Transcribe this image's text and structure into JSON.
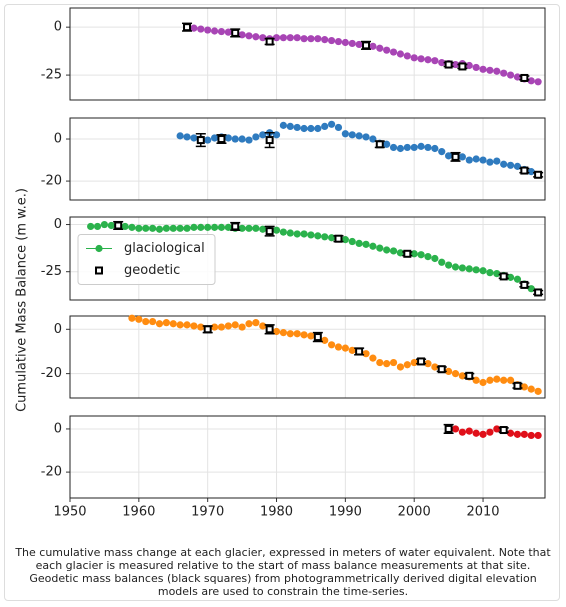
{
  "ylabel": "Cumulative Mass Balance (m w.e.)",
  "caption": "The cumulative mass change at each glacier, expressed in meters of water equivalent. Note that each glacier is measured relative to the start of mass balance measurements at that site. Geodetic mass balances (black squares) from photogrammetrically derived digital elevation models are used to constrain the time-series.",
  "chart_data": [
    {
      "type": "scatter",
      "xlim": [
        1950,
        2019
      ],
      "xticks": [
        1950,
        1960,
        1970,
        1980,
        1990,
        2000,
        2010
      ],
      "ylim": [
        -38,
        10
      ],
      "yticks": [
        0,
        -25
      ],
      "grid": true,
      "series": [
        {
          "color": "#a845b5",
          "x": [
            1967,
            1968,
            1969,
            1970,
            1971,
            1972,
            1973,
            1974,
            1975,
            1976,
            1977,
            1978,
            1979,
            1980,
            1981,
            1982,
            1983,
            1984,
            1985,
            1986,
            1987,
            1988,
            1989,
            1990,
            1991,
            1992,
            1993,
            1994,
            1995,
            1996,
            1997,
            1998,
            1999,
            2000,
            2001,
            2002,
            2003,
            2004,
            2005,
            2006,
            2007,
            2008,
            2009,
            2010,
            2011,
            2012,
            2013,
            2014,
            2015,
            2016,
            2017,
            2018
          ],
          "values": [
            0,
            -0.5,
            -1,
            -1.5,
            -2,
            -2.3,
            -2.6,
            -3,
            -4,
            -4.5,
            -5,
            -5.5,
            -6,
            -5.5,
            -5.5,
            -5.5,
            -5.5,
            -6,
            -6,
            -6,
            -6.5,
            -7,
            -7.5,
            -8,
            -8.5,
            -9,
            -9.5,
            -10,
            -11,
            -12,
            -13,
            -14,
            -15,
            -16,
            -16.5,
            -17,
            -17.5,
            -18.5,
            -19,
            -19.5,
            -19,
            -20,
            -21,
            -22,
            -22.5,
            -23,
            -24,
            -25,
            -26,
            -27,
            -28,
            -28.5
          ]
        },
        {
          "color": "#000000",
          "marker": "square",
          "x": [
            1967,
            1974,
            1979,
            1993,
            2005,
            2007,
            2016
          ],
          "values": [
            0,
            -3,
            -7.5,
            -9.5,
            -19.5,
            -20.5,
            -26.5
          ],
          "errors": [
            2,
            2,
            1.5,
            2,
            1,
            1,
            1
          ]
        }
      ]
    },
    {
      "type": "scatter",
      "xlim": [
        1950,
        2019
      ],
      "xticks": [
        1950,
        1960,
        1970,
        1980,
        1990,
        2000,
        2010
      ],
      "ylim": [
        -29,
        10
      ],
      "yticks": [
        0,
        -20
      ],
      "grid": true,
      "series": [
        {
          "color": "#2f7bbf",
          "x": [
            1966,
            1967,
            1968,
            1969,
            1970,
            1971,
            1972,
            1973,
            1974,
            1975,
            1976,
            1977,
            1978,
            1979,
            1980,
            1981,
            1982,
            1983,
            1984,
            1985,
            1986,
            1987,
            1988,
            1989,
            1990,
            1991,
            1992,
            1993,
            1994,
            1995,
            1996,
            1997,
            1998,
            1999,
            2000,
            2001,
            2002,
            2003,
            2004,
            2005,
            2006,
            2007,
            2008,
            2009,
            2010,
            2011,
            2012,
            2013,
            2014,
            2015,
            2016,
            2017,
            2018
          ],
          "values": [
            1.5,
            1,
            0.5,
            0,
            -0.5,
            0.5,
            1,
            0.5,
            0,
            0,
            -0.5,
            1,
            2,
            3,
            2,
            6.5,
            6,
            5.5,
            5,
            5,
            5,
            6,
            7,
            5.5,
            2.5,
            2,
            1.5,
            1,
            0,
            -2,
            -2.5,
            -4,
            -4.5,
            -4,
            -4,
            -3.5,
            -4,
            -4.5,
            -6,
            -8,
            -8.5,
            -8.5,
            -10,
            -9.5,
            -10,
            -11,
            -10.5,
            -12,
            -12.5,
            -13,
            -14.5,
            -15.5,
            -17
          ]
        },
        {
          "color": "#000000",
          "marker": "square",
          "x": [
            1969,
            1972,
            1979,
            1995,
            2006,
            2016,
            2018
          ],
          "values": [
            -0.5,
            0,
            -0.5,
            -2.5,
            -8.5,
            -15,
            -17
          ],
          "errors": [
            3,
            2,
            3.5,
            1.5,
            2,
            1,
            1
          ]
        }
      ]
    },
    {
      "type": "scatter",
      "xlim": [
        1950,
        2019
      ],
      "xticks": [
        1950,
        1960,
        1970,
        1980,
        1990,
        2000,
        2010
      ],
      "ylim": [
        -40,
        4
      ],
      "yticks": [
        0,
        -25
      ],
      "grid": true,
      "legend": "center left",
      "series": [
        {
          "name": "glaciological",
          "color": "#2bb24c",
          "x": [
            1953,
            1954,
            1955,
            1956,
            1957,
            1958,
            1959,
            1960,
            1961,
            1962,
            1963,
            1964,
            1965,
            1966,
            1967,
            1968,
            1969,
            1970,
            1971,
            1972,
            1973,
            1974,
            1975,
            1976,
            1977,
            1978,
            1979,
            1980,
            1981,
            1982,
            1983,
            1984,
            1985,
            1986,
            1987,
            1988,
            1989,
            1990,
            1991,
            1992,
            1993,
            1994,
            1995,
            1996,
            1997,
            1998,
            1999,
            2000,
            2001,
            2002,
            2003,
            2004,
            2005,
            2006,
            2007,
            2008,
            2009,
            2010,
            2011,
            2012,
            2013,
            2014,
            2015,
            2016,
            2017,
            2018
          ],
          "values": [
            -1,
            -1,
            0,
            -0.5,
            -0.5,
            -1,
            -1.5,
            -2,
            -2,
            -2,
            -2.5,
            -2,
            -2,
            -2,
            -2,
            -1.5,
            -1.5,
            -1.5,
            -1.5,
            -1.5,
            -1.5,
            -2,
            -2,
            -2,
            -2,
            -2.5,
            -3,
            -3,
            -4,
            -4.5,
            -5,
            -5,
            -5.5,
            -6,
            -6.5,
            -7,
            -7.5,
            -8,
            -9,
            -10,
            -10.5,
            -11.5,
            -12.5,
            -13.5,
            -14,
            -15,
            -15.5,
            -15.5,
            -16,
            -17,
            -18,
            -20,
            -21.5,
            -22.5,
            -23,
            -23.5,
            -24,
            -24.5,
            -25.5,
            -26,
            -27,
            -28,
            -29,
            -31.5,
            -34,
            -36
          ]
        },
        {
          "name": "geodetic",
          "color": "#000000",
          "marker": "square",
          "x": [
            1957,
            1974,
            1979,
            1989,
            1999,
            2013,
            2016,
            2018
          ],
          "values": [
            -0.5,
            -1,
            -3.5,
            -7.5,
            -15.5,
            -27.5,
            -32,
            -36
          ],
          "errors": [
            2,
            2,
            2.5,
            1.5,
            1,
            1,
            1,
            1
          ]
        }
      ]
    },
    {
      "type": "scatter",
      "xlim": [
        1950,
        2019
      ],
      "xticks": [
        1950,
        1960,
        1970,
        1980,
        1990,
        2000,
        2010
      ],
      "ylim": [
        -31,
        6
      ],
      "yticks": [
        0,
        -20
      ],
      "grid": true,
      "series": [
        {
          "color": "#ff8c10",
          "x": [
            1959,
            1960,
            1961,
            1962,
            1963,
            1964,
            1965,
            1966,
            1967,
            1968,
            1969,
            1970,
            1971,
            1972,
            1973,
            1974,
            1975,
            1976,
            1977,
            1978,
            1979,
            1980,
            1981,
            1982,
            1983,
            1984,
            1985,
            1986,
            1987,
            1988,
            1989,
            1990,
            1991,
            1992,
            1993,
            1994,
            1995,
            1996,
            1997,
            1998,
            1999,
            2000,
            2001,
            2002,
            2003,
            2004,
            2005,
            2006,
            2007,
            2008,
            2009,
            2010,
            2011,
            2012,
            2013,
            2014,
            2015,
            2016,
            2017,
            2018
          ],
          "values": [
            5,
            4.5,
            3.5,
            3.5,
            2.5,
            3,
            2.5,
            2,
            2,
            1.5,
            1,
            0,
            1,
            1,
            1.5,
            2,
            1,
            2.5,
            3,
            1.5,
            0,
            -1,
            -1.5,
            -2,
            -2,
            -2.5,
            -3,
            -3.5,
            -5,
            -7,
            -8,
            -8.5,
            -9.5,
            -10,
            -11,
            -13,
            -15,
            -15.5,
            -15,
            -17,
            -16,
            -15,
            -14.5,
            -15.5,
            -17,
            -18,
            -19,
            -20,
            -21,
            -21.5,
            -23,
            -24,
            -23,
            -22.5,
            -23,
            -23,
            -25,
            -26,
            -27,
            -28
          ]
        },
        {
          "color": "#000000",
          "marker": "square",
          "x": [
            1970,
            1979,
            1986,
            1992,
            2001,
            2004,
            2008,
            2015
          ],
          "values": [
            0,
            0,
            -3.5,
            -10,
            -14.5,
            -18,
            -21,
            -25.5
          ],
          "errors": [
            1.5,
            2,
            2,
            1.5,
            1,
            1,
            1,
            1
          ]
        }
      ]
    },
    {
      "type": "scatter",
      "xlim": [
        1950,
        2019
      ],
      "xticks": [
        1950,
        1960,
        1970,
        1980,
        1990,
        2000,
        2010
      ],
      "ylim": [
        -32,
        6
      ],
      "yticks": [
        0,
        -20
      ],
      "grid": true,
      "series": [
        {
          "color": "#e0101a",
          "x": [
            2006,
            2007,
            2008,
            2009,
            2010,
            2011,
            2012,
            2013,
            2014,
            2015,
            2016,
            2017,
            2018
          ],
          "values": [
            0,
            -1.5,
            -1,
            -2,
            -2.5,
            -1.5,
            0,
            -0.5,
            -2,
            -2.5,
            -2.5,
            -3,
            -3
          ]
        },
        {
          "color": "#000000",
          "marker": "square",
          "x": [
            2005,
            2013
          ],
          "values": [
            0,
            -0.5
          ],
          "errors": [
            2,
            1
          ]
        }
      ]
    }
  ]
}
